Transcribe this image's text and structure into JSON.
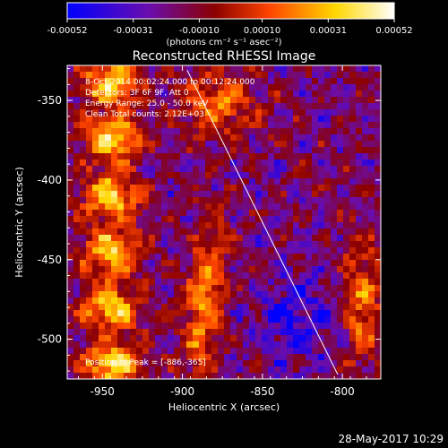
{
  "chart_data": {
    "type": "heatmap",
    "title": "Reconstructed RHESSI Image",
    "colorbar": {
      "ticks": [
        -0.00052,
        -0.00031,
        -0.0001,
        0.0001,
        0.00031,
        0.00052
      ],
      "tick_labels": [
        "-0.00052",
        "-0.00031",
        "-0.00010",
        "0.00010",
        "0.00031",
        "0.00052"
      ],
      "unit_label": "(photons cm⁻² s⁻¹ asec⁻²)",
      "colors": [
        "#0000ff",
        "#6a0dad",
        "#8b0000",
        "#ff4500",
        "#ffd700",
        "#ffffff"
      ]
    },
    "xlabel": "Heliocentric X (arcsec)",
    "ylabel": "Heliocentric Y (arcsec)",
    "xlim": [
      -972,
      -776
    ],
    "ylim": [
      -525,
      -328
    ],
    "xticks": [
      -950,
      -900,
      -850,
      -800
    ],
    "xtick_labels": [
      "-950",
      "-900",
      "-850",
      "-800"
    ],
    "yticks": [
      -350,
      -400,
      -450,
      -500
    ],
    "ytick_labels": [
      "-350",
      "-400",
      "-450",
      "-500"
    ],
    "limb_line": {
      "x": [
        -897,
        -803
      ],
      "y": [
        -331,
        -522
      ]
    },
    "annotations": [
      "8-Oct-2014 00:02:24.000 to 00:12:24.000",
      "Detectors: 3F 6F 9F, Att 0",
      "Energy Range: 25.0 - 50.0 keV",
      "Clean    Total counts: 2.12E+03"
    ],
    "peak_label": "Position of Peak = [-886,-365]",
    "peak": {
      "x": -886,
      "y": -365
    },
    "grid": false
  },
  "footer_timestamp": "28-May-2017 10:29"
}
